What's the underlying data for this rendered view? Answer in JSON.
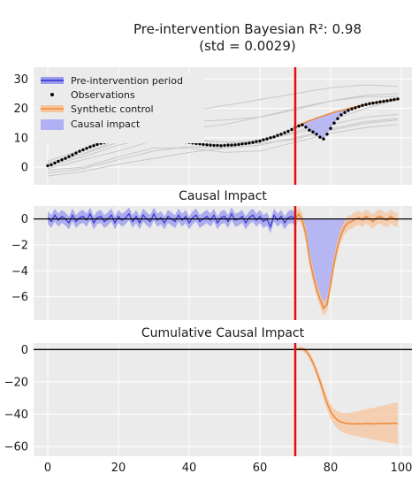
{
  "chart_data": [
    {
      "type": "line",
      "title_line1": "Pre-intervention Bayesian R²: 0.98",
      "title_line2": "(std = 0.0029)",
      "xlim": [
        -4,
        103
      ],
      "ylim": [
        -6,
        34
      ],
      "yticks": [
        "0",
        "10",
        "20",
        "30"
      ],
      "ytick_values": [
        0,
        10,
        20,
        30
      ],
      "intervention_x": 70,
      "legend": {
        "placement": "top-left",
        "entries": [
          "Pre-intervention period",
          "Observations",
          "Synthetic control",
          "Causal impact"
        ]
      },
      "observations": {
        "x": [
          0,
          1,
          2,
          3,
          4,
          5,
          6,
          7,
          8,
          9,
          10,
          11,
          12,
          13,
          14,
          15,
          16,
          17,
          18,
          19,
          20,
          21,
          22,
          23,
          24,
          25,
          26,
          27,
          28,
          29,
          30,
          31,
          32,
          33,
          34,
          35,
          36,
          37,
          38,
          39,
          40,
          41,
          42,
          43,
          44,
          45,
          46,
          47,
          48,
          49,
          50,
          51,
          52,
          53,
          54,
          55,
          56,
          57,
          58,
          59,
          60,
          61,
          62,
          63,
          64,
          65,
          66,
          67,
          68,
          69,
          70,
          71,
          72,
          73,
          74,
          75,
          76,
          77,
          78,
          79,
          80,
          81,
          82,
          83,
          84,
          85,
          86,
          87,
          88,
          89,
          90,
          91,
          92,
          93,
          94,
          95,
          96,
          97,
          98,
          99
        ],
        "y": [
          0.5,
          0.8,
          1.4,
          2.0,
          2.5,
          3.0,
          3.6,
          4.2,
          4.8,
          5.4,
          5.9,
          6.4,
          6.9,
          7.3,
          7.7,
          8.1,
          8.4,
          8.7,
          9.0,
          9.2,
          9.4,
          9.6,
          9.5,
          9.8,
          9.7,
          9.9,
          9.6,
          9.8,
          9.7,
          9.9,
          9.6,
          9.7,
          9.5,
          9.6,
          9.3,
          9.4,
          9.1,
          9.0,
          8.8,
          8.6,
          8.4,
          8.2,
          8.0,
          7.9,
          7.7,
          7.6,
          7.5,
          7.4,
          7.4,
          7.3,
          7.4,
          7.5,
          7.5,
          7.6,
          7.7,
          7.9,
          8.0,
          8.2,
          8.4,
          8.7,
          8.9,
          9.3,
          9.6,
          10.0,
          10.3,
          10.8,
          11.2,
          11.7,
          12.2,
          12.8,
          13.5,
          14.0,
          14.4,
          13.6,
          12.6,
          12.0,
          11.2,
          10.2,
          9.6,
          11.2,
          13.2,
          15.0,
          16.5,
          17.8,
          18.6,
          19.3,
          19.8,
          20.2,
          20.6,
          21.0,
          21.3,
          21.6,
          21.8,
          22.0,
          22.2,
          22.4,
          22.6,
          22.8,
          23.0,
          23.2
        ]
      },
      "synthetic_control": {
        "x": [
          70,
          71,
          72,
          73,
          74,
          75,
          76,
          77,
          78,
          79,
          80,
          81,
          82,
          83,
          84,
          85,
          86,
          87,
          88,
          89,
          90,
          91,
          92,
          93,
          94,
          95,
          96,
          97,
          98,
          99
        ],
        "y": [
          13.6,
          14.3,
          14.8,
          15.3,
          15.8,
          16.2,
          16.7,
          17.1,
          17.5,
          17.9,
          18.3,
          18.7,
          19.0,
          19.3,
          19.6,
          19.9,
          20.2,
          20.5,
          20.8,
          21.0,
          21.3,
          21.5,
          21.7,
          21.9,
          22.1,
          22.3,
          22.5,
          22.6,
          22.8,
          23.0
        ]
      },
      "donor_series": [
        {
          "x": [
            0,
            10,
            20,
            30,
            40,
            50,
            60,
            70,
            80,
            90,
            99
          ],
          "y": [
            -3.0,
            -1.5,
            1.0,
            3.0,
            5.0,
            6.5,
            9.0,
            12.0,
            16.0,
            20.0,
            23.0
          ]
        },
        {
          "x": [
            0,
            10,
            20,
            30,
            40,
            50,
            60,
            70,
            80,
            90,
            99
          ],
          "y": [
            2.0,
            6.0,
            12.0,
            17.0,
            19.0,
            21.0,
            23.0,
            25.0,
            27.0,
            28.0,
            27.5
          ]
        },
        {
          "x": [
            0,
            10,
            20,
            30,
            40,
            50,
            60,
            70,
            80,
            90,
            99
          ],
          "y": [
            1.0,
            4.5,
            8.5,
            12.5,
            13.0,
            14.5,
            17.0,
            20.0,
            22.5,
            24.0,
            24.0
          ]
        },
        {
          "x": [
            0,
            10,
            20,
            30,
            40,
            50,
            60,
            70,
            80,
            90,
            99
          ],
          "y": [
            -0.5,
            2.5,
            5.5,
            9.0,
            9.0,
            8.5,
            9.0,
            11.5,
            14.5,
            17.0,
            18.0
          ]
        },
        {
          "x": [
            0,
            10,
            20,
            30,
            40,
            50,
            60,
            70,
            80,
            90,
            99
          ],
          "y": [
            0.5,
            3.5,
            7.5,
            10.0,
            9.5,
            8.5,
            8.0,
            9.5,
            12.5,
            15.0,
            16.0
          ]
        },
        {
          "x": [
            0,
            10,
            20,
            30,
            40,
            50,
            60,
            70,
            80,
            90,
            99
          ],
          "y": [
            -2.0,
            -0.5,
            2.5,
            5.5,
            7.0,
            6.5,
            7.5,
            10.0,
            13.0,
            15.5,
            16.5
          ]
        },
        {
          "x": [
            0,
            10,
            20,
            30,
            40,
            50,
            60,
            70,
            80,
            90,
            99
          ],
          "y": [
            1.5,
            4.5,
            9.5,
            14.5,
            15.5,
            16.0,
            17.0,
            19.5,
            22.5,
            24.5,
            25.0
          ]
        },
        {
          "x": [
            0,
            10,
            20,
            30,
            40,
            50,
            60,
            70,
            80,
            90,
            99
          ],
          "y": [
            -1.0,
            0.0,
            3.5,
            6.5,
            6.5,
            5.0,
            5.5,
            8.5,
            11.5,
            13.5,
            14.5
          ]
        }
      ]
    },
    {
      "type": "line",
      "title": "Causal Impact",
      "xlim": [
        -4,
        103
      ],
      "ylim": [
        -7.8,
        1.0
      ],
      "yticks": [
        "0",
        "−2",
        "−4",
        "−6"
      ],
      "ytick_values": [
        0,
        -2,
        -4,
        -6
      ],
      "intervention_x": 70,
      "pre_period": {
        "x": [
          0,
          1,
          2,
          3,
          4,
          5,
          6,
          7,
          8,
          9,
          10,
          11,
          12,
          13,
          14,
          15,
          16,
          17,
          18,
          19,
          20,
          21,
          22,
          23,
          24,
          25,
          26,
          27,
          28,
          29,
          30,
          31,
          32,
          33,
          34,
          35,
          36,
          37,
          38,
          39,
          40,
          41,
          42,
          43,
          44,
          45,
          46,
          47,
          48,
          49,
          50,
          51,
          52,
          53,
          54,
          55,
          56,
          57,
          58,
          59,
          60,
          61,
          62,
          63,
          64,
          65,
          66,
          67,
          68,
          69,
          70
        ],
        "y": [
          0.1,
          -0.2,
          0.3,
          -0.1,
          0.2,
          0.0,
          -0.3,
          0.3,
          -0.2,
          0.1,
          0.2,
          -0.1,
          0.4,
          -0.3,
          0.1,
          0.2,
          -0.2,
          0.0,
          0.3,
          -0.3,
          0.2,
          -0.1,
          0.1,
          0.4,
          -0.2,
          0.2,
          -0.3,
          0.3,
          0.0,
          -0.2,
          0.4,
          -0.1,
          0.1,
          -0.3,
          0.2,
          0.0,
          -0.2,
          0.3,
          -0.1,
          0.2,
          -0.3,
          0.1,
          0.3,
          -0.2,
          0.0,
          0.2,
          -0.1,
          0.3,
          -0.3,
          0.1,
          0.2,
          -0.2,
          0.4,
          -0.1,
          0.0,
          0.2,
          -0.3,
          0.1,
          0.3,
          -0.1,
          0.2,
          -0.2,
          0.0,
          -0.6,
          0.3,
          -0.1,
          0.2,
          -0.3,
          0.1,
          0.2,
          0.0
        ],
        "band_halfwidth": 0.5
      },
      "post_period": {
        "x": [
          70,
          71,
          72,
          73,
          74,
          75,
          76,
          77,
          78,
          79,
          80,
          81,
          82,
          83,
          84,
          85,
          86,
          87,
          88,
          89,
          90,
          91,
          92,
          93,
          94,
          95,
          96,
          97,
          98,
          99
        ],
        "y": [
          0.0,
          0.4,
          -0.1,
          -1.2,
          -3.0,
          -4.3,
          -5.4,
          -6.2,
          -6.9,
          -6.6,
          -5.0,
          -3.4,
          -2.1,
          -1.2,
          -0.6,
          -0.3,
          -0.2,
          0.0,
          0.1,
          -0.1,
          0.2,
          0.0,
          -0.2,
          0.1,
          0.2,
          0.0,
          -0.1,
          0.2,
          0.0,
          -0.1
        ],
        "band_halfwidth": 0.55
      }
    },
    {
      "type": "line",
      "title": "Cumulative Causal Impact",
      "xlim": [
        -4,
        103
      ],
      "ylim": [
        -66,
        4
      ],
      "yticks": [
        "0",
        "−20",
        "−40",
        "−60"
      ],
      "ytick_values": [
        0,
        -20,
        -40,
        -60
      ],
      "xticks": [
        "0",
        "20",
        "40",
        "60",
        "80",
        "100"
      ],
      "xtick_values": [
        0,
        20,
        40,
        60,
        80,
        100
      ],
      "intervention_x": 70,
      "post_period": {
        "x": [
          70,
          71,
          72,
          73,
          74,
          75,
          76,
          77,
          78,
          79,
          80,
          81,
          82,
          83,
          84,
          85,
          86,
          87,
          88,
          89,
          90,
          91,
          92,
          93,
          94,
          95,
          96,
          97,
          98,
          99
        ],
        "y": [
          0.0,
          0.5,
          0.4,
          -0.8,
          -3.8,
          -8.1,
          -13.5,
          -19.7,
          -26.6,
          -33.2,
          -38.2,
          -41.6,
          -43.7,
          -44.9,
          -45.5,
          -45.8,
          -46.0,
          -46.0,
          -45.9,
          -46.0,
          -45.8,
          -45.8,
          -46.0,
          -45.9,
          -45.7,
          -45.7,
          -45.8,
          -45.6,
          -45.6,
          -45.7
        ]
      }
    }
  ],
  "colors": {
    "panel_bg": "#ebebeb",
    "grid": "#ffffff",
    "donor": "#c8c8c8",
    "pre_line": "#2a2ad0",
    "pre_band": "#9b9bee",
    "synthetic": "#ee8c3d",
    "synthetic_band": "#f7c49c",
    "impact_fill": "#b0b0f4",
    "observation": "#000000",
    "intervention": "#e01010",
    "zero_line": "#000000"
  }
}
